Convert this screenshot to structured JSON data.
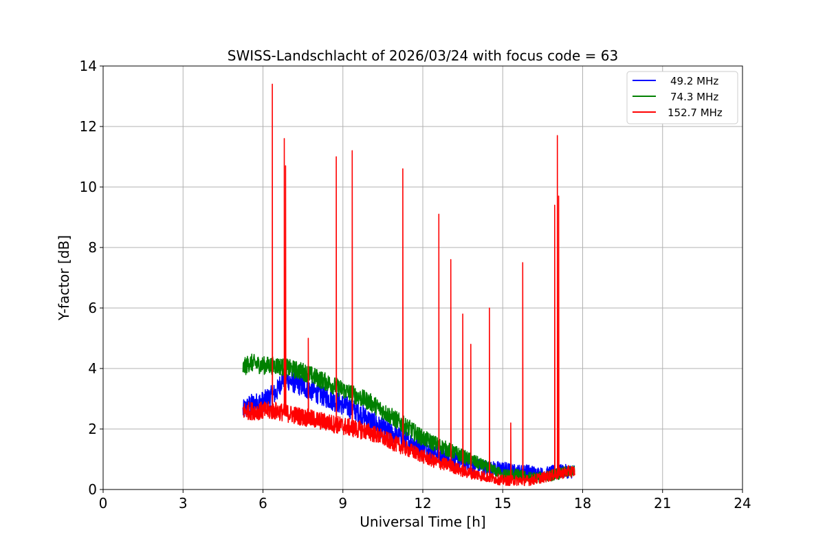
{
  "chart_data": {
    "type": "line",
    "title": "SWISS-Landschlacht of 2026/03/24 with focus code = 63",
    "xlabel": "Universal Time [h]",
    "ylabel": "Y-factor [dB]",
    "xlim": [
      0,
      24
    ],
    "ylim": [
      0,
      14
    ],
    "xticks": [
      "0",
      "3",
      "6",
      "9",
      "12",
      "15",
      "18",
      "21",
      "24"
    ],
    "yticks": [
      "0",
      "2",
      "4",
      "6",
      "8",
      "10",
      "12",
      "14"
    ],
    "grid": true,
    "legend_position": "top-right",
    "series": [
      {
        "name": "49.2 MHz",
        "color": "#0000ff",
        "x": [
          5.25,
          5.5,
          6.0,
          6.5,
          6.75,
          7.0,
          7.5,
          8.0,
          8.5,
          9.0,
          9.5,
          10.0,
          10.5,
          11.0,
          11.5,
          12.0,
          12.5,
          13.0,
          13.5,
          14.0,
          14.5,
          15.0,
          15.5,
          16.0,
          16.5,
          17.0,
          17.5,
          17.7
        ],
        "y": [
          2.6,
          2.8,
          2.9,
          3.2,
          3.7,
          3.6,
          3.4,
          3.2,
          3.0,
          2.8,
          2.6,
          2.3,
          2.0,
          1.8,
          1.6,
          1.4,
          1.2,
          1.0,
          0.9,
          0.8,
          0.7,
          0.7,
          0.6,
          0.6,
          0.5,
          0.6,
          0.6,
          0.6
        ]
      },
      {
        "name": "74.3 MHz",
        "color": "#008000",
        "x": [
          5.25,
          5.5,
          6.0,
          6.5,
          7.0,
          7.5,
          8.0,
          8.5,
          9.0,
          9.5,
          10.0,
          10.5,
          11.0,
          11.5,
          12.0,
          12.5,
          13.0,
          13.5,
          14.0,
          14.5,
          15.0,
          15.5,
          16.0,
          16.5,
          17.0,
          17.5,
          17.7
        ],
        "y": [
          4.0,
          4.2,
          4.1,
          4.1,
          4.0,
          3.9,
          3.7,
          3.5,
          3.3,
          3.1,
          2.9,
          2.6,
          2.3,
          2.0,
          1.7,
          1.5,
          1.3,
          1.1,
          0.9,
          0.7,
          0.5,
          0.5,
          0.4,
          0.4,
          0.5,
          0.6,
          0.6
        ]
      },
      {
        "name": "152.7 MHz",
        "color": "#ff0000",
        "x": [
          5.25,
          5.5,
          6.0,
          6.5,
          7.0,
          7.5,
          8.0,
          8.5,
          9.0,
          9.5,
          10.0,
          10.5,
          11.0,
          11.5,
          12.0,
          12.5,
          13.0,
          13.5,
          14.0,
          14.5,
          15.0,
          15.5,
          16.0,
          16.5,
          17.0,
          17.5,
          17.7
        ],
        "y": [
          2.6,
          2.6,
          2.6,
          2.6,
          2.5,
          2.4,
          2.3,
          2.2,
          2.1,
          2.0,
          1.9,
          1.7,
          1.5,
          1.3,
          1.1,
          0.9,
          0.8,
          0.6,
          0.5,
          0.4,
          0.3,
          0.3,
          0.3,
          0.4,
          0.5,
          0.6,
          0.6
        ],
        "spikes": [
          {
            "x": 6.35,
            "y": 13.4
          },
          {
            "x": 6.8,
            "y": 11.6
          },
          {
            "x": 6.85,
            "y": 10.7
          },
          {
            "x": 7.7,
            "y": 5.0
          },
          {
            "x": 8.75,
            "y": 11.0
          },
          {
            "x": 9.35,
            "y": 11.2
          },
          {
            "x": 11.25,
            "y": 10.6
          },
          {
            "x": 12.6,
            "y": 9.1
          },
          {
            "x": 13.05,
            "y": 7.6
          },
          {
            "x": 13.5,
            "y": 5.8
          },
          {
            "x": 13.8,
            "y": 4.8
          },
          {
            "x": 14.5,
            "y": 6.0
          },
          {
            "x": 15.3,
            "y": 2.2
          },
          {
            "x": 15.75,
            "y": 7.5
          },
          {
            "x": 17.05,
            "y": 11.7
          },
          {
            "x": 17.1,
            "y": 9.7
          },
          {
            "x": 16.95,
            "y": 9.4
          }
        ]
      }
    ]
  }
}
